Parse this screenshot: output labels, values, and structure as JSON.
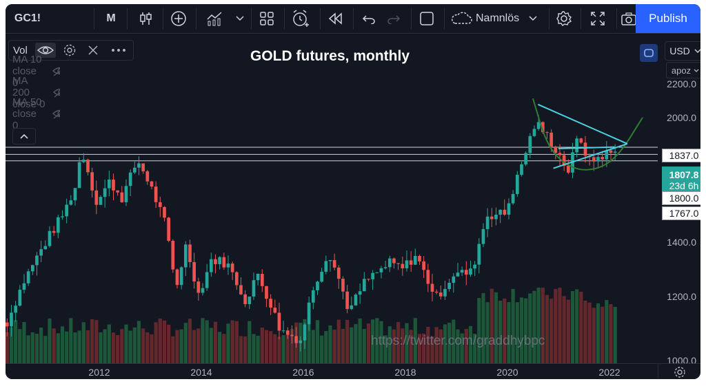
{
  "toolbar": {
    "symbol": "GC1!",
    "interval": "M",
    "drawing_name": "Namnlös",
    "publish_label": "Publish"
  },
  "legend": {
    "vol_label": "Vol",
    "studies": [
      {
        "label": "MA 10 close 0"
      },
      {
        "label": "MA 200 close 0"
      },
      {
        "label": "MA 50 close 0"
      }
    ]
  },
  "chart_title": "GOLD futures, monthly",
  "watermark": "https://twitter.com/graddhybpc",
  "axis": {
    "currency": "USD",
    "scale_mode": "apoz",
    "y_ticks": [
      "2200.0",
      "2000.0",
      "1400.0",
      "1200.0",
      "1000.0"
    ],
    "x_ticks": [
      "2012",
      "2014",
      "2016",
      "2018",
      "2020",
      "2022"
    ]
  },
  "price_labels": {
    "upper_line": "1837.0",
    "current_price": "1807.8",
    "countdown": "23d 6h",
    "mid_line": "1800.0",
    "lower_line": "1767.0"
  },
  "colors": {
    "background": "#131722",
    "up": "#26a69a",
    "down": "#ef5350",
    "triangle": "#4dd0e1",
    "arc": "#2e7d32",
    "accent": "#2962ff"
  },
  "chart_data": {
    "type": "candlestick",
    "title": "GOLD futures, monthly",
    "ylim": [
      980,
      2240
    ],
    "x_range": [
      2010.1,
      2022.95
    ],
    "y_scale": "log",
    "horizontal_levels": [
      1837.0,
      1800.0,
      1767.0
    ],
    "current_price": 1807.8,
    "close_series": [
      {
        "t": 2010.2,
        "c": 1115
      },
      {
        "t": 2010.5,
        "c": 1245
      },
      {
        "t": 2010.9,
        "c": 1385
      },
      {
        "t": 2011.3,
        "c": 1520
      },
      {
        "t": 2011.55,
        "c": 1650
      },
      {
        "t": 2011.65,
        "c": 1830
      },
      {
        "t": 2011.95,
        "c": 1565
      },
      {
        "t": 2012.2,
        "c": 1665
      },
      {
        "t": 2012.45,
        "c": 1590
      },
      {
        "t": 2012.75,
        "c": 1770
      },
      {
        "t": 2012.95,
        "c": 1675
      },
      {
        "t": 2013.3,
        "c": 1470
      },
      {
        "t": 2013.5,
        "c": 1225
      },
      {
        "t": 2013.7,
        "c": 1390
      },
      {
        "t": 2013.95,
        "c": 1205
      },
      {
        "t": 2014.2,
        "c": 1335
      },
      {
        "t": 2014.5,
        "c": 1320
      },
      {
        "t": 2014.9,
        "c": 1175
      },
      {
        "t": 2015.1,
        "c": 1285
      },
      {
        "t": 2015.55,
        "c": 1090
      },
      {
        "t": 2015.95,
        "c": 1060
      },
      {
        "t": 2016.2,
        "c": 1235
      },
      {
        "t": 2016.5,
        "c": 1365
      },
      {
        "t": 2016.9,
        "c": 1150
      },
      {
        "t": 2017.2,
        "c": 1250
      },
      {
        "t": 2017.7,
        "c": 1320
      },
      {
        "t": 2017.95,
        "c": 1300
      },
      {
        "t": 2018.2,
        "c": 1350
      },
      {
        "t": 2018.6,
        "c": 1195
      },
      {
        "t": 2018.95,
        "c": 1280
      },
      {
        "t": 2019.3,
        "c": 1285
      },
      {
        "t": 2019.6,
        "c": 1515
      },
      {
        "t": 2019.95,
        "c": 1520
      },
      {
        "t": 2020.2,
        "c": 1685
      },
      {
        "t": 2020.55,
        "c": 1970
      },
      {
        "t": 2020.8,
        "c": 1890
      },
      {
        "t": 2021.2,
        "c": 1715
      },
      {
        "t": 2021.4,
        "c": 1905
      },
      {
        "t": 2021.6,
        "c": 1760
      },
      {
        "t": 2021.9,
        "c": 1800
      },
      {
        "t": 2022.05,
        "c": 1808
      }
    ],
    "triangle_pattern": {
      "upper": [
        [
          2020.6,
          2075
        ],
        [
          2022.35,
          1855
        ]
      ],
      "lower": [
        [
          2020.9,
          1730
        ],
        [
          2022.35,
          1855
        ]
      ],
      "upper_inner": [
        [
          2021.0,
          1830
        ],
        [
          2022.1,
          1838
        ]
      ]
    },
    "cup_arc": [
      [
        2020.5,
        2110
      ],
      [
        2020.8,
        1825
      ],
      [
        2021.3,
        1720
      ],
      [
        2021.8,
        1725
      ],
      [
        2022.2,
        1800
      ],
      [
        2022.65,
        2000
      ]
    ]
  }
}
